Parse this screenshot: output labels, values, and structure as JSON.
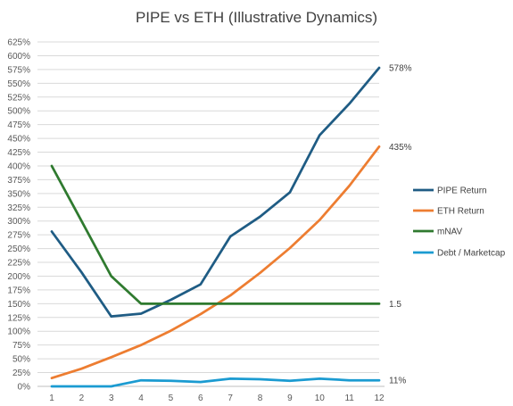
{
  "chart_data": {
    "type": "line",
    "title": "PIPE vs ETH (Illustrative Dynamics)",
    "xlabel": "",
    "ylabel": "",
    "x": [
      1,
      2,
      3,
      4,
      5,
      6,
      7,
      8,
      9,
      10,
      11,
      12
    ],
    "ylim": [
      0,
      625
    ],
    "y_tick_step": 25,
    "y_tick_format": "percent",
    "grid": "horizontal",
    "legend_position": "right",
    "series": [
      {
        "name": "PIPE Return",
        "color": "#1F5C84",
        "values": [
          281,
          207,
          127,
          132,
          157,
          185,
          272,
          308,
          352,
          456,
          513,
          578
        ],
        "end_label": "578%"
      },
      {
        "name": "ETH Return",
        "color": "#ED7D31",
        "values": [
          15,
          32,
          53,
          75,
          101,
          131,
          165,
          206,
          251,
          302,
          364,
          435
        ],
        "end_label": "435%"
      },
      {
        "name": "mNAV",
        "color": "#2F7A2F",
        "values": [
          400,
          300,
          200,
          150,
          150,
          150,
          150,
          150,
          150,
          150,
          150,
          150
        ],
        "end_label": "1.5"
      },
      {
        "name": "Debt / Marketcap",
        "color": "#1B9BD1",
        "values": [
          0,
          0,
          0,
          11,
          10,
          8,
          14,
          13,
          10,
          14,
          11,
          11
        ],
        "end_label": "11%"
      }
    ]
  }
}
